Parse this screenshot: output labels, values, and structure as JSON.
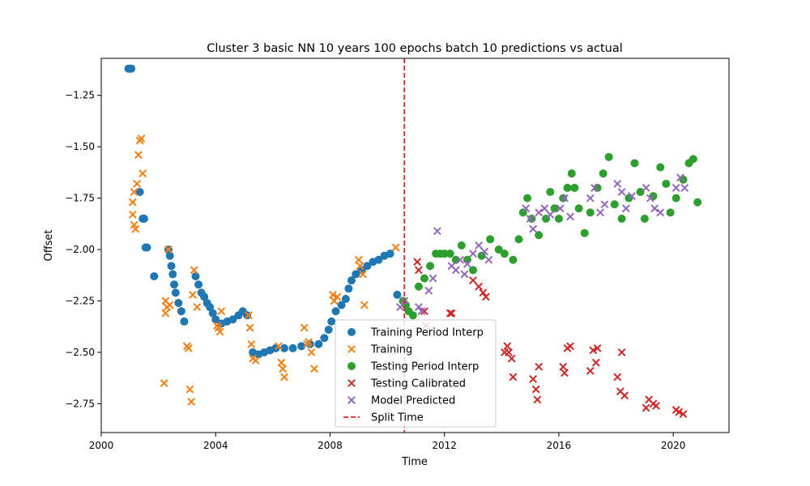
{
  "chart_data": {
    "type": "scatter",
    "title": "Cluster 3 basic NN 10 years 100 epochs batch 10 predictions vs actual",
    "xlabel": "Time",
    "ylabel": "Offset",
    "xlim": [
      2000.0,
      2021.95
    ],
    "ylim": [
      -2.89,
      -1.07
    ],
    "xticks": [
      {
        "value": 2000,
        "label": "2000"
      },
      {
        "value": 2004,
        "label": "2004"
      },
      {
        "value": 2008,
        "label": "2008"
      },
      {
        "value": 2012,
        "label": "2012"
      },
      {
        "value": 2016,
        "label": "2016"
      },
      {
        "value": 2020,
        "label": "2020"
      }
    ],
    "yticks": [
      {
        "value": -1.25,
        "label": "−1.25"
      },
      {
        "value": -1.5,
        "label": "−1.50"
      },
      {
        "value": -1.75,
        "label": "−1.75"
      },
      {
        "value": -2.0,
        "label": "−2.00"
      },
      {
        "value": -2.25,
        "label": "−2.25"
      },
      {
        "value": -2.5,
        "label": "−2.50"
      },
      {
        "value": -2.75,
        "label": "−2.75"
      }
    ],
    "grid": false,
    "legend_position": "lower-center",
    "split_time": 2010.6,
    "series": [
      {
        "name": "Training Period Interp",
        "marker": "circle",
        "color": "#1f77b4",
        "points": [
          [
            2000.95,
            -1.12
          ],
          [
            2001.0,
            -1.12
          ],
          [
            2001.05,
            -1.12
          ],
          [
            2001.35,
            -1.72
          ],
          [
            2001.45,
            -1.85
          ],
          [
            2001.5,
            -1.85
          ],
          [
            2001.55,
            -1.99
          ],
          [
            2001.6,
            -1.99
          ],
          [
            2001.85,
            -2.13
          ],
          [
            2002.35,
            -2.0
          ],
          [
            2002.4,
            -2.03
          ],
          [
            2002.45,
            -2.08
          ],
          [
            2002.5,
            -2.12
          ],
          [
            2002.55,
            -2.17
          ],
          [
            2002.6,
            -2.21
          ],
          [
            2002.7,
            -2.26
          ],
          [
            2002.8,
            -2.3
          ],
          [
            2002.9,
            -2.35
          ],
          [
            2003.3,
            -2.13
          ],
          [
            2003.4,
            -2.17
          ],
          [
            2003.5,
            -2.21
          ],
          [
            2003.6,
            -2.23
          ],
          [
            2003.7,
            -2.26
          ],
          [
            2003.8,
            -2.28
          ],
          [
            2003.9,
            -2.31
          ],
          [
            2004.0,
            -2.34
          ],
          [
            2004.2,
            -2.36
          ],
          [
            2004.4,
            -2.35
          ],
          [
            2004.6,
            -2.34
          ],
          [
            2004.8,
            -2.32
          ],
          [
            2004.95,
            -2.3
          ],
          [
            2005.1,
            -2.32
          ],
          [
            2005.3,
            -2.5
          ],
          [
            2005.5,
            -2.51
          ],
          [
            2005.7,
            -2.5
          ],
          [
            2005.9,
            -2.49
          ],
          [
            2006.1,
            -2.48
          ],
          [
            2006.4,
            -2.48
          ],
          [
            2006.7,
            -2.48
          ],
          [
            2007.0,
            -2.47
          ],
          [
            2007.3,
            -2.46
          ],
          [
            2007.6,
            -2.46
          ],
          [
            2007.8,
            -2.43
          ],
          [
            2007.95,
            -2.39
          ],
          [
            2008.05,
            -2.35
          ],
          [
            2008.2,
            -2.3
          ],
          [
            2008.4,
            -2.27
          ],
          [
            2008.55,
            -2.24
          ],
          [
            2008.65,
            -2.19
          ],
          [
            2008.75,
            -2.15
          ],
          [
            2008.9,
            -2.12
          ],
          [
            2009.1,
            -2.1
          ],
          [
            2009.3,
            -2.08
          ],
          [
            2009.5,
            -2.06
          ],
          [
            2009.7,
            -2.05
          ],
          [
            2009.9,
            -2.03
          ],
          [
            2010.1,
            -2.02
          ],
          [
            2010.35,
            -2.22
          ]
        ]
      },
      {
        "name": "Training",
        "marker": "x",
        "color": "#ff7f0e",
        "points": [
          [
            2001.1,
            -1.77
          ],
          [
            2001.1,
            -1.83
          ],
          [
            2001.15,
            -1.88
          ],
          [
            2001.15,
            -1.72
          ],
          [
            2001.2,
            -1.9
          ],
          [
            2001.25,
            -1.68
          ],
          [
            2001.3,
            -1.54
          ],
          [
            2001.35,
            -1.47
          ],
          [
            2001.4,
            -1.46
          ],
          [
            2001.45,
            -1.63
          ],
          [
            2002.2,
            -2.65
          ],
          [
            2002.25,
            -2.25
          ],
          [
            2002.25,
            -2.31
          ],
          [
            2002.3,
            -2.28
          ],
          [
            2002.35,
            -2.0
          ],
          [
            2002.4,
            -2.27
          ],
          [
            2003.0,
            -2.47
          ],
          [
            2003.05,
            -2.48
          ],
          [
            2003.1,
            -2.68
          ],
          [
            2003.15,
            -2.74
          ],
          [
            2003.2,
            -2.22
          ],
          [
            2003.25,
            -2.1
          ],
          [
            2003.35,
            -2.28
          ],
          [
            2004.05,
            -2.37
          ],
          [
            2004.1,
            -2.38
          ],
          [
            2004.15,
            -2.4
          ],
          [
            2004.2,
            -2.3
          ],
          [
            2005.15,
            -2.32
          ],
          [
            2005.2,
            -2.38
          ],
          [
            2005.25,
            -2.46
          ],
          [
            2005.3,
            -2.53
          ],
          [
            2005.4,
            -2.54
          ],
          [
            2006.2,
            -2.47
          ],
          [
            2006.3,
            -2.55
          ],
          [
            2006.35,
            -2.58
          ],
          [
            2006.4,
            -2.62
          ],
          [
            2007.1,
            -2.38
          ],
          [
            2007.2,
            -2.46
          ],
          [
            2007.25,
            -2.45
          ],
          [
            2007.35,
            -2.5
          ],
          [
            2007.45,
            -2.58
          ],
          [
            2008.1,
            -2.22
          ],
          [
            2008.15,
            -2.25
          ],
          [
            2008.25,
            -2.23
          ],
          [
            2009.0,
            -2.05
          ],
          [
            2009.05,
            -2.08
          ],
          [
            2009.15,
            -2.12
          ],
          [
            2009.2,
            -2.27
          ],
          [
            2010.3,
            -1.99
          ]
        ]
      },
      {
        "name": "Testing Period Interp",
        "marker": "circle",
        "color": "#2ca02c",
        "points": [
          [
            2010.55,
            -2.25
          ],
          [
            2010.65,
            -2.27
          ],
          [
            2010.75,
            -2.3
          ],
          [
            2010.9,
            -2.32
          ],
          [
            2011.1,
            -2.18
          ],
          [
            2011.3,
            -2.14
          ],
          [
            2011.5,
            -2.08
          ],
          [
            2011.7,
            -2.02
          ],
          [
            2011.85,
            -2.02
          ],
          [
            2012.0,
            -2.02
          ],
          [
            2012.2,
            -2.02
          ],
          [
            2012.4,
            -2.05
          ],
          [
            2012.6,
            -1.98
          ],
          [
            2012.8,
            -2.05
          ],
          [
            2013.0,
            -2.1
          ],
          [
            2013.3,
            -2.03
          ],
          [
            2013.6,
            -1.95
          ],
          [
            2013.9,
            -2.0
          ],
          [
            2014.1,
            -2.02
          ],
          [
            2014.4,
            -2.05
          ],
          [
            2014.6,
            -1.95
          ],
          [
            2014.75,
            -1.82
          ],
          [
            2014.9,
            -1.75
          ],
          [
            2015.05,
            -1.85
          ],
          [
            2015.3,
            -1.93
          ],
          [
            2015.55,
            -1.85
          ],
          [
            2015.7,
            -1.72
          ],
          [
            2015.85,
            -1.8
          ],
          [
            2016.0,
            -1.85
          ],
          [
            2016.15,
            -1.75
          ],
          [
            2016.3,
            -1.7
          ],
          [
            2016.45,
            -1.63
          ],
          [
            2016.55,
            -1.7
          ],
          [
            2016.7,
            -1.8
          ],
          [
            2016.9,
            -1.92
          ],
          [
            2017.1,
            -1.82
          ],
          [
            2017.35,
            -1.7
          ],
          [
            2017.55,
            -1.63
          ],
          [
            2017.75,
            -1.55
          ],
          [
            2017.95,
            -1.78
          ],
          [
            2018.2,
            -1.85
          ],
          [
            2018.45,
            -1.75
          ],
          [
            2018.65,
            -1.58
          ],
          [
            2018.85,
            -1.72
          ],
          [
            2019.0,
            -1.85
          ],
          [
            2019.3,
            -1.74
          ],
          [
            2019.55,
            -1.6
          ],
          [
            2019.75,
            -1.68
          ],
          [
            2019.9,
            -1.82
          ],
          [
            2020.1,
            -1.75
          ],
          [
            2020.35,
            -1.66
          ],
          [
            2020.55,
            -1.58
          ],
          [
            2020.7,
            -1.56
          ],
          [
            2020.85,
            -1.77
          ]
        ]
      },
      {
        "name": "Testing Calibrated",
        "marker": "x",
        "color": "#d62728",
        "points": [
          [
            2011.05,
            -2.06
          ],
          [
            2011.1,
            -2.1
          ],
          [
            2011.3,
            -2.3
          ],
          [
            2011.35,
            -2.37
          ],
          [
            2012.2,
            -2.31
          ],
          [
            2012.25,
            -2.31
          ],
          [
            2013.0,
            -2.15
          ],
          [
            2013.2,
            -2.18
          ],
          [
            2013.35,
            -2.21
          ],
          [
            2013.45,
            -2.23
          ],
          [
            2014.1,
            -2.5
          ],
          [
            2014.2,
            -2.47
          ],
          [
            2014.25,
            -2.5
          ],
          [
            2014.35,
            -2.53
          ],
          [
            2014.4,
            -2.62
          ],
          [
            2015.1,
            -2.63
          ],
          [
            2015.2,
            -2.68
          ],
          [
            2015.25,
            -2.73
          ],
          [
            2015.3,
            -2.57
          ],
          [
            2016.15,
            -2.57
          ],
          [
            2016.2,
            -2.6
          ],
          [
            2016.3,
            -2.48
          ],
          [
            2016.4,
            -2.47
          ],
          [
            2017.1,
            -2.59
          ],
          [
            2017.2,
            -2.49
          ],
          [
            2017.3,
            -2.55
          ],
          [
            2017.35,
            -2.48
          ],
          [
            2018.05,
            -2.62
          ],
          [
            2018.15,
            -2.69
          ],
          [
            2018.2,
            -2.5
          ],
          [
            2018.3,
            -2.71
          ],
          [
            2019.05,
            -2.77
          ],
          [
            2019.15,
            -2.73
          ],
          [
            2019.3,
            -2.75
          ],
          [
            2019.4,
            -2.76
          ],
          [
            2020.1,
            -2.78
          ],
          [
            2020.2,
            -2.79
          ],
          [
            2020.35,
            -2.8
          ]
        ]
      },
      {
        "name": "Model Predicted",
        "marker": "x",
        "color": "#9467bd",
        "points": [
          [
            2010.45,
            -2.28
          ],
          [
            2010.6,
            -2.25
          ],
          [
            2011.1,
            -2.28
          ],
          [
            2011.2,
            -2.3
          ],
          [
            2011.45,
            -2.2
          ],
          [
            2011.6,
            -2.14
          ],
          [
            2011.75,
            -1.91
          ],
          [
            2012.25,
            -2.08
          ],
          [
            2012.4,
            -2.1
          ],
          [
            2012.55,
            -2.05
          ],
          [
            2012.7,
            -2.12
          ],
          [
            2012.8,
            -2.07
          ],
          [
            2013.0,
            -2.02
          ],
          [
            2013.2,
            -1.98
          ],
          [
            2013.4,
            -2.01
          ],
          [
            2013.55,
            -2.05
          ],
          [
            2014.85,
            -1.8
          ],
          [
            2015.0,
            -1.85
          ],
          [
            2015.1,
            -1.9
          ],
          [
            2015.3,
            -1.82
          ],
          [
            2015.5,
            -1.8
          ],
          [
            2015.7,
            -1.83
          ],
          [
            2016.05,
            -1.8
          ],
          [
            2016.2,
            -1.75
          ],
          [
            2016.4,
            -1.84
          ],
          [
            2017.1,
            -1.75
          ],
          [
            2017.25,
            -1.7
          ],
          [
            2017.45,
            -1.82
          ],
          [
            2017.6,
            -1.78
          ],
          [
            2018.05,
            -1.68
          ],
          [
            2018.2,
            -1.72
          ],
          [
            2018.35,
            -1.8
          ],
          [
            2018.55,
            -1.74
          ],
          [
            2019.05,
            -1.7
          ],
          [
            2019.2,
            -1.75
          ],
          [
            2019.35,
            -1.8
          ],
          [
            2019.55,
            -1.82
          ],
          [
            2020.1,
            -1.7
          ],
          [
            2020.25,
            -1.65
          ],
          [
            2020.4,
            -1.7
          ]
        ]
      }
    ],
    "split_series": {
      "name": "Split Time",
      "color": "#d62728",
      "style": "dashed"
    }
  }
}
